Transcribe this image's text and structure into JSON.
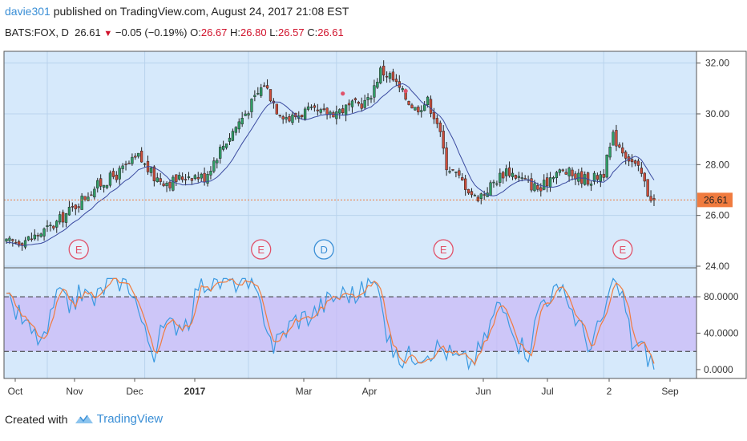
{
  "header": {
    "user": "davie301",
    "published": " published on TradingView.com, August 24, 2017 21:08 EST"
  },
  "ticker": {
    "symbol": "BATS:FOX, D",
    "last": "26.61",
    "change": "−0.05 (−0.19%)",
    "o_label": "O:",
    "o": "26.67",
    "h_label": "H:",
    "h": "26.80",
    "l_label": "L:",
    "l": "26.57",
    "c_label": "C:",
    "c": "26.61"
  },
  "footer": {
    "created_with": "Created with",
    "brand": "TradingView"
  },
  "colors": {
    "bg": "#d6e9fb",
    "band": "#c9b9f7",
    "stoch_k": "#3b9ae1",
    "stoch_d": "#f07b3f",
    "ma": "#3a4aa0",
    "price_line": "#f07b3f",
    "event": "#e0526a",
    "dividend": "#3b8fd6"
  },
  "chart_data": {
    "type": "candlestick",
    "price_axis": {
      "ticks": [
        "32.00",
        "30.00",
        "28.00",
        "26.00",
        "24.00"
      ],
      "values": [
        32,
        30,
        28,
        26,
        24
      ],
      "range": [
        24,
        32.4
      ]
    },
    "last_price_label": "26.61",
    "x_tick_labels": [
      "Oct",
      "Nov",
      "Dec",
      "2017",
      "Mar",
      "Apr",
      "Jun",
      "Jul",
      "2",
      "Sep"
    ],
    "price_keypoints": [
      [
        0,
        24.9
      ],
      [
        8,
        25.1
      ],
      [
        15,
        25.6
      ],
      [
        22,
        26.4
      ],
      [
        28,
        27.1
      ],
      [
        35,
        27.6
      ],
      [
        42,
        28.3
      ],
      [
        47,
        27.5
      ],
      [
        52,
        27.3
      ],
      [
        58,
        27.6
      ],
      [
        63,
        27.5
      ],
      [
        68,
        28.6
      ],
      [
        73,
        29.5
      ],
      [
        78,
        30.4
      ],
      [
        82,
        31.2
      ],
      [
        86,
        30.2
      ],
      [
        90,
        29.8
      ],
      [
        95,
        30.1
      ],
      [
        100,
        30.0
      ],
      [
        105,
        30.1
      ],
      [
        110,
        30.3
      ],
      [
        115,
        30.5
      ],
      [
        119,
        31.7
      ],
      [
        122,
        31.5
      ],
      [
        126,
        30.8
      ],
      [
        130,
        30.2
      ],
      [
        134,
        30.5
      ],
      [
        137,
        29.7
      ],
      [
        140,
        28.0
      ],
      [
        143,
        27.6
      ],
      [
        146,
        27.2
      ],
      [
        149,
        26.7
      ],
      [
        152,
        26.9
      ],
      [
        155,
        27.3
      ],
      [
        159,
        27.8
      ],
      [
        163,
        27.5
      ],
      [
        167,
        27.2
      ],
      [
        170,
        27.0
      ],
      [
        174,
        27.7
      ],
      [
        178,
        27.7
      ],
      [
        182,
        27.5
      ],
      [
        186,
        27.4
      ],
      [
        190,
        27.7
      ],
      [
        193,
        29.1
      ],
      [
        196,
        28.6
      ],
      [
        199,
        28.1
      ],
      [
        202,
        27.6
      ],
      [
        204,
        26.9
      ],
      [
        206,
        26.61
      ]
    ],
    "events": [
      {
        "label": "E",
        "bar": 23
      },
      {
        "label": "E",
        "bar": 81
      },
      {
        "label": "D",
        "bar": 101
      },
      {
        "label": "E",
        "bar": 139
      },
      {
        "label": "E",
        "bar": 196
      }
    ],
    "markers": [
      {
        "bar": 107,
        "price": 30.8
      },
      {
        "bar": 127,
        "price": 30.9
      }
    ],
    "stoch_axis": {
      "ticks": [
        "80.0000",
        "40.0000",
        "0.0000"
      ],
      "values": [
        80,
        40,
        0
      ],
      "range": [
        -8,
        110
      ]
    },
    "stoch_band": [
      20,
      80
    ],
    "stoch_keypoints": [
      [
        0,
        75
      ],
      [
        4,
        60
      ],
      [
        8,
        40
      ],
      [
        12,
        30
      ],
      [
        16,
        80
      ],
      [
        20,
        70
      ],
      [
        24,
        85
      ],
      [
        28,
        75
      ],
      [
        32,
        95
      ],
      [
        36,
        98
      ],
      [
        40,
        90
      ],
      [
        44,
        40
      ],
      [
        47,
        20
      ],
      [
        50,
        45
      ],
      [
        54,
        50
      ],
      [
        58,
        55
      ],
      [
        61,
        95
      ],
      [
        66,
        95
      ],
      [
        72,
        98
      ],
      [
        78,
        90
      ],
      [
        82,
        60
      ],
      [
        85,
        25
      ],
      [
        88,
        40
      ],
      [
        92,
        55
      ],
      [
        97,
        60
      ],
      [
        102,
        75
      ],
      [
        108,
        85
      ],
      [
        112,
        80
      ],
      [
        115,
        95
      ],
      [
        119,
        90
      ],
      [
        121,
        40
      ],
      [
        124,
        10
      ],
      [
        128,
        15
      ],
      [
        133,
        20
      ],
      [
        138,
        25
      ],
      [
        143,
        12
      ],
      [
        148,
        8
      ],
      [
        152,
        30
      ],
      [
        156,
        70
      ],
      [
        160,
        60
      ],
      [
        163,
        30
      ],
      [
        166,
        20
      ],
      [
        170,
        75
      ],
      [
        174,
        85
      ],
      [
        178,
        80
      ],
      [
        182,
        50
      ],
      [
        186,
        25
      ],
      [
        190,
        60
      ],
      [
        193,
        95
      ],
      [
        196,
        80
      ],
      [
        199,
        30
      ],
      [
        202,
        25
      ],
      [
        205,
        10
      ],
      [
        206,
        5
      ]
    ]
  }
}
